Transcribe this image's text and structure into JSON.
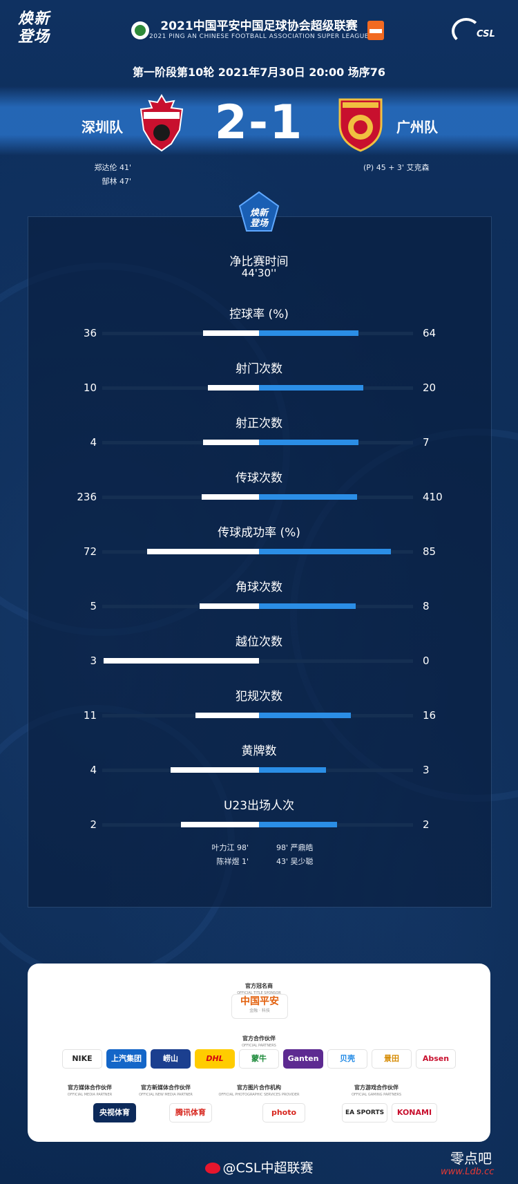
{
  "header": {
    "logo_left": [
      "焕新",
      "登场"
    ],
    "league_title_cn": "2021中国平安中国足球协会超级联赛",
    "league_title_en": "2021 PING AN CHINESE FOOTBALL ASSOCIATION SUPER LEAGUE",
    "csl_logo_text": "CSL"
  },
  "match": {
    "round_info": "第一阶段第10轮  2021年7月30日 20:00 场序76",
    "home_team": "深圳队",
    "away_team": "广州队",
    "score": "2-1",
    "home_scorers": [
      "郑达伦 41'",
      "郜林 47'"
    ],
    "away_scorers": [
      "(P) 45 + 3'  艾克森"
    ]
  },
  "panel_badge": [
    "焕新",
    "登场"
  ],
  "net_time": {
    "label": "净比赛时间",
    "value": "44'30''"
  },
  "stats": [
    {
      "label": "控球率 (%)",
      "home": "36",
      "away": "64",
      "home_fraction": 0.36,
      "away_fraction": 0.64
    },
    {
      "label": "射门次数",
      "home": "10",
      "away": "20",
      "home_fraction": 0.33,
      "away_fraction": 0.67
    },
    {
      "label": "射正次数",
      "home": "4",
      "away": "7",
      "home_fraction": 0.36,
      "away_fraction": 0.64
    },
    {
      "label": "传球次数",
      "home": "236",
      "away": "410",
      "home_fraction": 0.37,
      "away_fraction": 0.63
    },
    {
      "label": "传球成功率 (%)",
      "home": "72",
      "away": "85",
      "home_fraction": 0.72,
      "away_fraction": 0.85
    },
    {
      "label": "角球次数",
      "home": "5",
      "away": "8",
      "home_fraction": 0.38,
      "away_fraction": 0.62
    },
    {
      "label": "越位次数",
      "home": "3",
      "away": "0",
      "home_fraction": 1.0,
      "away_fraction": 0.0
    },
    {
      "label": "犯规次数",
      "home": "11",
      "away": "16",
      "home_fraction": 0.41,
      "away_fraction": 0.59
    },
    {
      "label": "黄牌数",
      "home": "4",
      "away": "3",
      "home_fraction": 0.57,
      "away_fraction": 0.43
    },
    {
      "label": "U23出场人次",
      "home": "2",
      "away": "2",
      "home_fraction": 0.5,
      "away_fraction": 0.5
    }
  ],
  "u23_players": {
    "home": [
      "叶力江  98'",
      "陈祥煜  1'"
    ],
    "away": [
      "98'  严鼎皓",
      "43'  吴少聪"
    ]
  },
  "sponsors": {
    "title_sponsor_heading": "官方冠名商",
    "title_sponsor_heading_en": "OFFICIAL TITLE SPONSOR",
    "title_sponsor_name": "中国平安",
    "title_sponsor_sub": "金融 · 科技",
    "partners_heading": "官方合作伙伴",
    "partners_heading_en": "OFFICIAL PARTNERS",
    "partners": [
      "NIKE",
      "上汽集团",
      "崂山",
      "DHL",
      "蒙牛",
      "Ganten",
      "贝壳",
      "景田",
      "Absen"
    ],
    "media_heading": "官方媒体合作伙伴",
    "media_heading_en": "OFFICIAL MEDIA PARTNER",
    "media": [
      "央视体育"
    ],
    "newmedia_heading": "官方新媒体合作伙伴",
    "newmedia_heading_en": "OFFICIAL NEW MEDIA PARTNER",
    "newmedia": [
      "腾讯体育"
    ],
    "photo_heading": "官方图片合作机构",
    "photo_heading_en": "OFFICIAL PHOTOGRAPHIC SERVICES PROVIDER",
    "photo": [
      "photo"
    ],
    "gaming_heading": "官方游戏合作伙伴",
    "gaming_heading_en": "OFFICIAL GAMING PARTNERS",
    "gaming": [
      "EA SPORTS",
      "KONAMI"
    ]
  },
  "footer": {
    "weibo_handle": "@CSL中超联赛",
    "watermark_cn": "零点吧",
    "watermark_url": "www.Ldb.cc"
  },
  "colors": {
    "background": "#0e2c57",
    "home_bar": "#ffffff",
    "away_bar": "#2b8ee6",
    "score_band": "#2c78d2"
  }
}
